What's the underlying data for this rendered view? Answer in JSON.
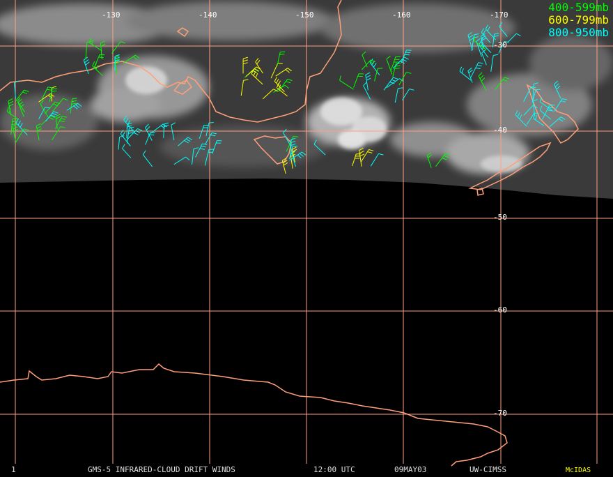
{
  "legend": [
    {
      "label": "400-599mb",
      "color": "#00ff00"
    },
    {
      "label": "600-799mb",
      "color": "#ffff00"
    },
    {
      "label": "800-950mb",
      "color": "#00ffff"
    }
  ],
  "longitude_labels": [
    "-130",
    "-140",
    "-150",
    "-160",
    "-170"
  ],
  "latitude_labels": [
    "-30",
    "-40",
    "-50",
    "-60",
    "-70"
  ],
  "footer": {
    "frame": "1",
    "satellite": "GMS-5 INFRARED-CLOUD DRIFT WINDS",
    "time": "12:00 UTC",
    "date": "09MAY03",
    "source": "UW-CIMSS",
    "software": "McIDAS"
  },
  "colors": {
    "grid": "#ff9f7f",
    "coast": "#ffa07a",
    "background": "#000000",
    "footer_software": "#ffff00"
  }
}
